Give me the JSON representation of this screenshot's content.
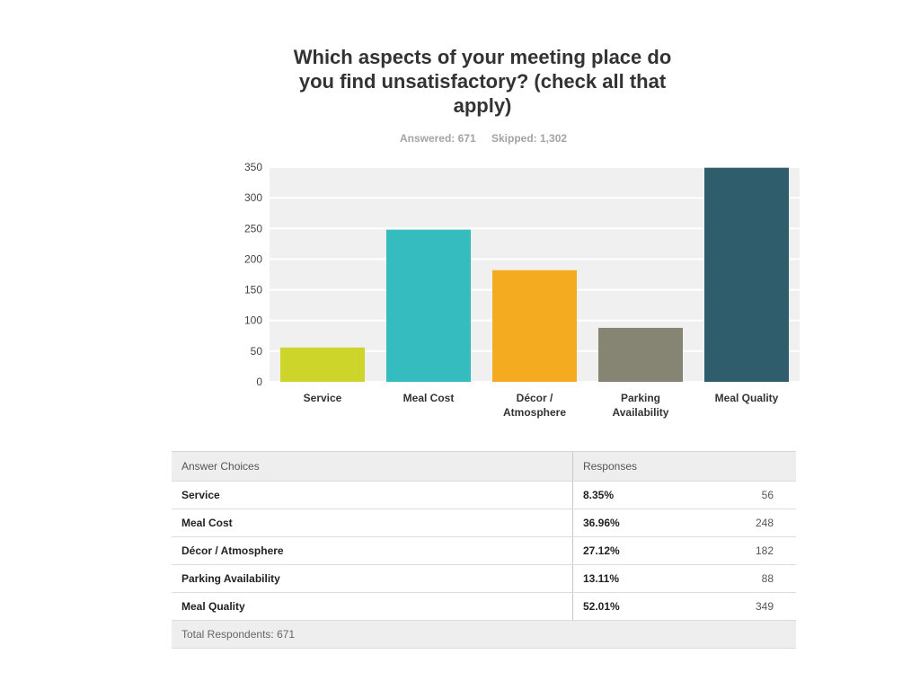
{
  "title_line1": "Which aspects of your meeting place do",
  "title_line2": "you find unsatisfactory? (check all that",
  "title_line3": "apply)",
  "answered": "Answered: 671",
  "skipped": "Skipped: 1,302",
  "chart_data": {
    "type": "bar",
    "categories": [
      [
        "Service"
      ],
      [
        "Meal Cost"
      ],
      [
        "Décor /",
        "Atmosphere"
      ],
      [
        "Parking",
        "Availability"
      ],
      [
        "Meal Quality"
      ]
    ],
    "values": [
      56,
      248,
      182,
      88,
      349
    ],
    "colors": [
      "#cdd52b",
      "#35bcbf",
      "#f5ab20",
      "#868574",
      "#2f5d6b"
    ],
    "ylim": [
      0,
      350
    ],
    "yticks": [
      0,
      50,
      100,
      150,
      200,
      250,
      300,
      350
    ],
    "grid": true
  },
  "table": {
    "header_choice": "Answer Choices",
    "header_responses": "Responses",
    "rows": [
      {
        "name": "Service",
        "pct": "8.35%",
        "count": "56"
      },
      {
        "name": "Meal Cost",
        "pct": "36.96%",
        "count": "248"
      },
      {
        "name": "Décor / Atmosphere",
        "pct": "27.12%",
        "count": "182"
      },
      {
        "name": "Parking Availability",
        "pct": "13.11%",
        "count": "88"
      },
      {
        "name": "Meal Quality",
        "pct": "52.01%",
        "count": "349"
      }
    ],
    "footer": "Total Respondents: 671"
  }
}
